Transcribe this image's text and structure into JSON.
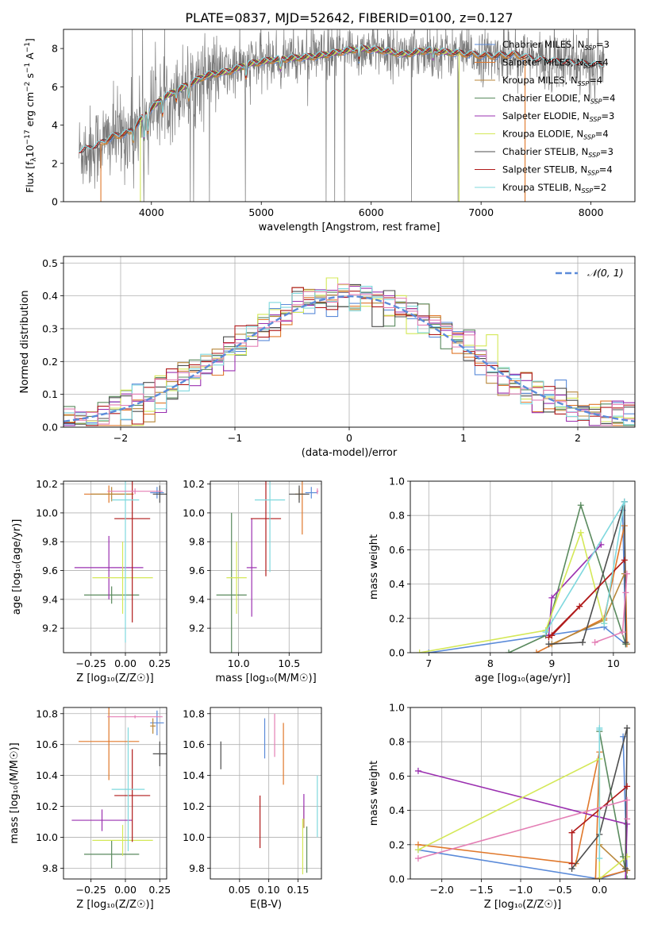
{
  "figure_title": "PLATE=0837, MJD=52642, FIBERID=0100, z=0.127",
  "colors": {
    "Chabrier MILES": "#5b8bd9",
    "Salpeter MILES": "#e0782b",
    "Kroupa MILES": "#b8873a",
    "Chabrier ELODIE": "#5a8a5e",
    "Salpeter ELODIE": "#9b30b0",
    "Kroupa ELODIE": "#d4e857",
    "Chabrier STELIB": "#4d4d4d",
    "Salpeter STELIB": "#b01a1a",
    "Kroupa STELIB": "#7fd8de",
    "pink": "#e47fb5",
    "data": "#7a7a7a",
    "gaussian": "#5b8bd9"
  },
  "chart_data": [
    {
      "id": "spectrum",
      "type": "line",
      "xlabel": "wavelength [Angstrom, rest frame]",
      "ylabel_main": "Flux [f",
      "ylabel_sub": "λ",
      "ylabel_rest": "10",
      "ylabel_exp": "−17",
      "ylabel_tail": " erg cm",
      "ylabel_exp2": "−2",
      "ylabel_tail2": " s",
      "ylabel_exp3": "−1",
      "ylabel_tail3": " A",
      "ylabel_exp4": "−1",
      "ylabel_end": "]",
      "xlim": [
        3200,
        8400
      ],
      "ylim": [
        0,
        9
      ],
      "xticks": [
        4000,
        5000,
        6000,
        7000,
        8000
      ],
      "yticks": [
        0,
        2,
        4,
        6,
        8
      ],
      "continuum": {
        "x": [
          3340,
          3500,
          3650,
          3800,
          3950,
          4100,
          4300,
          4500,
          4700,
          4900,
          5100,
          5300,
          5500,
          5700,
          5900,
          6100,
          6300,
          6500,
          6700,
          6900,
          7100,
          7300,
          7500,
          7700,
          7900,
          8120
        ],
        "y": [
          2.6,
          2.9,
          3.4,
          3.6,
          4.6,
          5.4,
          6.0,
          6.6,
          6.8,
          7.2,
          7.4,
          7.5,
          7.6,
          7.8,
          8.0,
          7.9,
          7.7,
          7.9,
          7.8,
          7.7,
          7.6,
          7.7,
          7.4,
          7.3,
          7.2,
          7.1
        ]
      },
      "legend": [
        {
          "prefix": "Chabrier MILES, N",
          "sub": "SSP",
          "suffix": "=3",
          "series": "Chabrier MILES"
        },
        {
          "prefix": "Salpeter MILES, N",
          "sub": "SSP",
          "suffix": "=4",
          "series": "Salpeter MILES"
        },
        {
          "prefix": "Kroupa MILES, N",
          "sub": "SSP",
          "suffix": "=4",
          "series": "Kroupa MILES"
        },
        {
          "prefix": "Chabrier ELODIE, N",
          "sub": "SSP",
          "suffix": "=4",
          "series": "Chabrier ELODIE"
        },
        {
          "prefix": "Salpeter ELODIE, N",
          "sub": "SSP",
          "suffix": "=3",
          "series": "Salpeter ELODIE"
        },
        {
          "prefix": "Kroupa ELODIE, N",
          "sub": "SSP",
          "suffix": "=4",
          "series": "Kroupa ELODIE"
        },
        {
          "prefix": "Chabrier STELIB, N",
          "sub": "SSP",
          "suffix": "=3",
          "series": "Chabrier STELIB"
        },
        {
          "prefix": "Salpeter STELIB, N",
          "sub": "SSP",
          "suffix": "=4",
          "series": "Salpeter STELIB"
        },
        {
          "prefix": "Kroupa STELIB, N",
          "sub": "SSP",
          "suffix": "=2",
          "series": "Kroupa STELIB"
        }
      ]
    },
    {
      "id": "residuals",
      "type": "histogram",
      "xlabel": "(data-model)/error",
      "ylabel": "Normed distribution",
      "xlim": [
        -2.5,
        2.5
      ],
      "ylim": [
        0,
        0.52
      ],
      "xticks": [
        -2,
        -1,
        0,
        1,
        2
      ],
      "yticks": [
        0.0,
        0.1,
        0.2,
        0.3,
        0.4,
        0.5
      ],
      "grid": true,
      "legend_label": "𝒩(0, 1)",
      "legend_position": "top-right",
      "bin_width": 0.1
    },
    {
      "id": "age_vs_Z",
      "type": "scatter",
      "xlabel": "Z [log₁₀(Z/Z☉)]",
      "ylabel": "age  [log₁₀(age/yr)]",
      "xlim": [
        -0.45,
        0.3
      ],
      "ylim": [
        9.03,
        10.22
      ],
      "xticks": [
        -0.25,
        0.0,
        0.25
      ],
      "yticks": [
        9.2,
        9.4,
        9.6,
        9.8,
        10.0,
        10.2
      ],
      "grid": true,
      "points": [
        {
          "series": "Chabrier MILES",
          "x": 0.23,
          "y": 10.14,
          "xerr": 0.05,
          "yerr": 0.04
        },
        {
          "series": "Salpeter MILES",
          "x": -0.12,
          "y": 10.13,
          "xerr": 0.18,
          "yerr": 0.06
        },
        {
          "series": "Kroupa MILES",
          "x": -0.1,
          "y": 10.13,
          "xerr": 0.15,
          "yerr": 0.05
        },
        {
          "series": "Chabrier ELODIE",
          "x": -0.1,
          "y": 9.43,
          "xerr": 0.2,
          "yerr": 0.06
        },
        {
          "series": "Salpeter ELODIE",
          "x": -0.12,
          "y": 9.62,
          "xerr": 0.25,
          "yerr": 0.22
        },
        {
          "series": "Kroupa ELODIE",
          "x": -0.02,
          "y": 9.55,
          "xerr": 0.22,
          "yerr": 0.25
        },
        {
          "series": "Chabrier STELIB",
          "x": 0.25,
          "y": 10.13,
          "xerr": 0.05,
          "yerr": 0.06
        },
        {
          "series": "Salpeter STELIB",
          "x": 0.05,
          "y": 9.96,
          "xerr": 0.13,
          "yerr": 0.72
        },
        {
          "series": "Kroupa STELIB",
          "x": 0.0,
          "y": 10.09,
          "xerr": 0.1,
          "yerr": 0.99
        },
        {
          "series": "pink",
          "x": 0.07,
          "y": 10.15,
          "xerr": 0.2,
          "yerr": 0.02
        }
      ]
    },
    {
      "id": "age_vs_mass",
      "type": "scatter",
      "xlabel": "mass [log₁₀(M/M☉)]",
      "ylabel": "",
      "xlim": [
        9.72,
        10.82
      ],
      "ylim": [
        9.03,
        10.22
      ],
      "xticks": [
        10.0,
        10.5
      ],
      "yticks": [
        9.2,
        9.4,
        9.6,
        9.8,
        10.0,
        10.2
      ],
      "grid": true,
      "points": [
        {
          "series": "Chabrier MILES",
          "x": 10.72,
          "y": 10.14,
          "xerr": 0.06,
          "yerr": 0.04
        },
        {
          "series": "Salpeter MILES",
          "x": 10.63,
          "y": 10.13,
          "xerr": 0.03,
          "yerr": 0.28
        },
        {
          "series": "Kroupa MILES",
          "x": 10.6,
          "y": 10.13,
          "xerr": 0.04,
          "yerr": 0.04
        },
        {
          "series": "Chabrier ELODIE",
          "x": 9.93,
          "y": 9.43,
          "xerr": 0.15,
          "yerr": 0.57
        },
        {
          "series": "Salpeter ELODIE",
          "x": 10.13,
          "y": 9.62,
          "xerr": 0.05,
          "yerr": 0.34
        },
        {
          "series": "Kroupa ELODIE",
          "x": 9.98,
          "y": 9.55,
          "xerr": 0.1,
          "yerr": 0.25
        },
        {
          "series": "Chabrier STELIB",
          "x": 10.6,
          "y": 10.13,
          "xerr": 0.1,
          "yerr": 0.06
        },
        {
          "series": "Salpeter STELIB",
          "x": 10.27,
          "y": 9.96,
          "xerr": 0.15,
          "yerr": 0.4
        },
        {
          "series": "Kroupa STELIB",
          "x": 10.31,
          "y": 10.09,
          "xerr": 0.15,
          "yerr": 0.5
        },
        {
          "series": "pink",
          "x": 10.78,
          "y": 10.15,
          "xerr": 0.01,
          "yerr": 0.02
        }
      ]
    },
    {
      "id": "massweight_vs_age",
      "type": "line",
      "xlabel": "age  [log₁₀(age/yr)]",
      "ylabel": "mass weight",
      "xlim": [
        6.7,
        10.35
      ],
      "ylim": [
        0,
        1.0
      ],
      "xticks": [
        7,
        8,
        9,
        10
      ],
      "yticks": [
        0.0,
        0.2,
        0.4,
        0.6,
        0.8,
        1.0
      ],
      "grid": true,
      "series": [
        {
          "name": "Chabrier MILES",
          "x": [
            7.0,
            9.85,
            10.2,
            10.15
          ],
          "y": [
            0.0,
            0.15,
            0.05,
            0.83
          ]
        },
        {
          "name": "Salpeter MILES",
          "x": [
            8.75,
            9.85,
            10.18,
            10.22
          ],
          "y": [
            0.0,
            0.2,
            0.74,
            0.05
          ]
        },
        {
          "name": "Kroupa MILES",
          "x": [
            9.0,
            9.85,
            10.18
          ],
          "y": [
            0.05,
            0.19,
            0.46
          ]
        },
        {
          "name": "Chabrier ELODIE",
          "x": [
            8.3,
            8.9,
            9.47,
            10.2
          ],
          "y": [
            0.0,
            0.1,
            0.86,
            0.05
          ]
        },
        {
          "name": "Salpeter ELODIE",
          "x": [
            8.95,
            9.0,
            9.8
          ],
          "y": [
            0.1,
            0.32,
            0.63
          ]
        },
        {
          "name": "Kroupa ELODIE",
          "x": [
            6.85,
            8.9,
            9.47,
            9.85
          ],
          "y": [
            0.0,
            0.13,
            0.7,
            0.17
          ]
        },
        {
          "name": "Chabrier STELIB",
          "x": [
            8.95,
            9.5,
            10.18,
            10.2
          ],
          "y": [
            0.05,
            0.06,
            0.88,
            0.06
          ]
        },
        {
          "name": "Salpeter STELIB",
          "x": [
            8.95,
            9.45,
            10.18,
            9.0
          ],
          "y": [
            0.09,
            0.27,
            0.54,
            0.1
          ]
        },
        {
          "name": "Kroupa STELIB",
          "x": [
            8.9,
            10.18,
            9.85
          ],
          "y": [
            0.12,
            0.88,
            0.17
          ]
        },
        {
          "name": "pink",
          "x": [
            9.7,
            10.15,
            10.22,
            10.2
          ],
          "y": [
            0.06,
            0.12,
            0.46,
            0.35
          ]
        }
      ]
    },
    {
      "id": "mass_vs_Z",
      "type": "scatter",
      "xlabel": "Z [log₁₀(Z/Z☉)]",
      "ylabel": "mass [log₁₀(M/M☉)]",
      "xlim": [
        -0.45,
        0.3
      ],
      "ylim": [
        9.73,
        10.84
      ],
      "xticks": [
        -0.25,
        0.0,
        0.25
      ],
      "yticks": [
        9.8,
        10.0,
        10.2,
        10.4,
        10.6,
        10.8
      ],
      "grid": true,
      "points": [
        {
          "series": "Chabrier MILES",
          "x": 0.23,
          "y": 10.74,
          "xerr": 0.05,
          "yerr": 0.08
        },
        {
          "series": "Salpeter MILES",
          "x": -0.12,
          "y": 10.62,
          "xerr": 0.22,
          "yerr": 0.25
        },
        {
          "series": "Kroupa MILES",
          "x": 0.2,
          "y": 10.72,
          "xerr": 0.02,
          "yerr": 0.05
        },
        {
          "series": "Chabrier ELODIE",
          "x": -0.1,
          "y": 9.89,
          "xerr": 0.2,
          "yerr": 0.09
        },
        {
          "series": "Salpeter ELODIE",
          "x": -0.17,
          "y": 10.11,
          "xerr": 0.22,
          "yerr": 0.07
        },
        {
          "series": "Kroupa ELODIE",
          "x": -0.02,
          "y": 9.98,
          "xerr": 0.22,
          "yerr": 0.1
        },
        {
          "series": "Chabrier STELIB",
          "x": 0.25,
          "y": 10.54,
          "xerr": 0.05,
          "yerr": 0.08
        },
        {
          "series": "Salpeter STELIB",
          "x": 0.05,
          "y": 10.27,
          "xerr": 0.13,
          "yerr": 0.3
        },
        {
          "series": "Kroupa STELIB",
          "x": 0.02,
          "y": 10.31,
          "xerr": 0.12,
          "yerr": 0.4
        },
        {
          "series": "pink",
          "x": 0.07,
          "y": 10.78,
          "xerr": 0.2,
          "yerr": 0.01
        }
      ]
    },
    {
      "id": "mass_vs_ebv",
      "type": "scatter",
      "xlabel": "E(B-V)",
      "ylabel": "",
      "xlim": [
        0.0,
        0.19
      ],
      "ylim": [
        9.73,
        10.84
      ],
      "xticks": [
        0.05,
        0.1,
        0.15
      ],
      "yticks": [
        9.8,
        10.0,
        10.2,
        10.4,
        10.6,
        10.8
      ],
      "grid": true,
      "points": [
        {
          "series": "Chabrier MILES",
          "x": 0.093,
          "y": 10.64,
          "yerr": 0.13
        },
        {
          "series": "Salpeter MILES",
          "x": 0.125,
          "y": 10.54,
          "yerr": 0.2
        },
        {
          "series": "Kroupa MILES",
          "x": 0.16,
          "y": 10.13,
          "yerr": 0.07
        },
        {
          "series": "Chabrier ELODIE",
          "x": 0.165,
          "y": 9.92,
          "yerr": 0.15
        },
        {
          "series": "Salpeter ELODIE",
          "x": 0.16,
          "y": 10.2,
          "yerr": 0.08
        },
        {
          "series": "Kroupa ELODIE",
          "x": 0.158,
          "y": 9.94,
          "yerr": 0.18
        },
        {
          "series": "Chabrier STELIB",
          "x": 0.018,
          "y": 10.53,
          "yerr": 0.09
        },
        {
          "series": "Salpeter STELIB",
          "x": 0.085,
          "y": 10.1,
          "yerr": 0.17
        },
        {
          "series": "Kroupa STELIB",
          "x": 0.183,
          "y": 10.2,
          "yerr": 0.2
        },
        {
          "series": "pink",
          "x": 0.11,
          "y": 10.66,
          "yerr": 0.14
        }
      ]
    },
    {
      "id": "massweight_vs_Z",
      "type": "line",
      "xlabel": "Z [log₁₀(Z/Z☉)]",
      "ylabel": "mass weight",
      "xlim": [
        -2.4,
        0.45
      ],
      "ylim": [
        0,
        1.0
      ],
      "xticks": [
        -2.0,
        -1.5,
        -1.0,
        -0.5,
        0.0
      ],
      "yticks": [
        0.0,
        0.2,
        0.4,
        0.6,
        0.8,
        1.0
      ],
      "grid": true,
      "series": [
        {
          "name": "Chabrier MILES",
          "x": [
            -2.3,
            0.0,
            0.35,
            0.3
          ],
          "y": [
            0.17,
            0.0,
            0.05,
            0.83
          ]
        },
        {
          "name": "Salpeter MILES",
          "x": [
            -2.3,
            -0.3,
            0.0,
            -0.05,
            0.35
          ],
          "y": [
            0.2,
            0.09,
            0.74,
            0.0,
            0.05
          ]
        },
        {
          "name": "Kroupa MILES",
          "x": [
            0.0,
            0.35
          ],
          "y": [
            0.2,
            0.05
          ]
        },
        {
          "name": "Chabrier ELODIE",
          "x": [
            0.0,
            0.35,
            0.3
          ],
          "y": [
            0.86,
            0.0,
            0.13
          ]
        },
        {
          "name": "Salpeter ELODIE",
          "x": [
            -2.3,
            0.35,
            0.33
          ],
          "y": [
            0.63,
            0.32,
            0.0
          ]
        },
        {
          "name": "Kroupa ELODIE",
          "x": [
            -2.3,
            0.0,
            0.0,
            0.35
          ],
          "y": [
            0.17,
            0.7,
            0.0,
            0.13
          ]
        },
        {
          "name": "Chabrier STELIB",
          "x": [
            -0.35,
            0.0,
            0.35,
            0.33
          ],
          "y": [
            0.06,
            0.26,
            0.88,
            0.06
          ]
        },
        {
          "name": "Salpeter STELIB",
          "x": [
            -0.35,
            -0.35,
            0.35
          ],
          "y": [
            0.09,
            0.27,
            0.54
          ]
        },
        {
          "name": "Kroupa STELIB",
          "x": [
            0.0,
            0.0,
            0.0
          ],
          "y": [
            0.87,
            0.12,
            0.88
          ]
        },
        {
          "name": "pink",
          "x": [
            -2.3,
            0.35,
            0.35
          ],
          "y": [
            0.12,
            0.46,
            0.35
          ]
        }
      ]
    }
  ]
}
